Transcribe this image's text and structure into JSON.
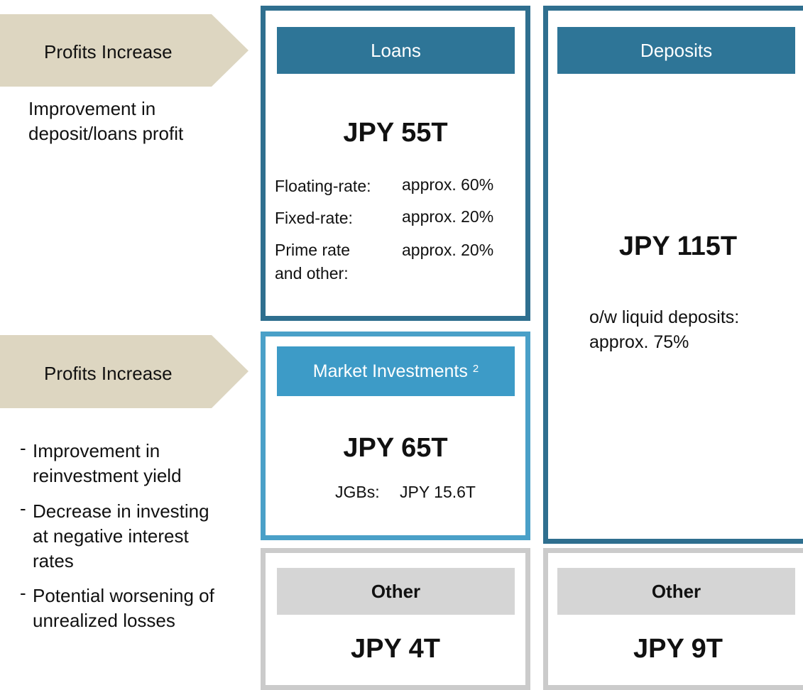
{
  "left": {
    "loans_driver": {
      "arrow": "Profits Increase",
      "lines": [
        "Improvement in",
        "deposit/loans profit"
      ]
    },
    "investments_driver": {
      "arrow": "Profits Increase",
      "bullets": [
        [
          "Improvement in",
          "reinvestment yield"
        ],
        [
          "Decrease in investing",
          "at negative interest",
          "rates"
        ],
        [
          "Potential worsening of",
          "unrealized losses"
        ]
      ]
    }
  },
  "loans": {
    "header": "Loans",
    "amount": "JPY 55T",
    "rows": [
      {
        "label": [
          "Floating-rate:"
        ],
        "value": "approx. 60%"
      },
      {
        "label": [
          "Fixed-rate:"
        ],
        "value": "approx. 20%"
      },
      {
        "label": [
          "Prime rate",
          "and other:"
        ],
        "value": "approx. 20%"
      }
    ]
  },
  "market_investments": {
    "header": "Market Investments",
    "note": "2",
    "amount": "JPY 65T",
    "row": {
      "label": "JGBs:",
      "value": "JPY 15.6T"
    }
  },
  "deposits": {
    "header": "Deposits",
    "amount": "JPY 115T",
    "lines": [
      "o/w liquid deposits:",
      "approx. 75%"
    ]
  },
  "other_assets": {
    "header": "Other",
    "amount": "JPY 4T"
  },
  "other_liabilities": {
    "header": "Other",
    "amount": "JPY 9T"
  }
}
